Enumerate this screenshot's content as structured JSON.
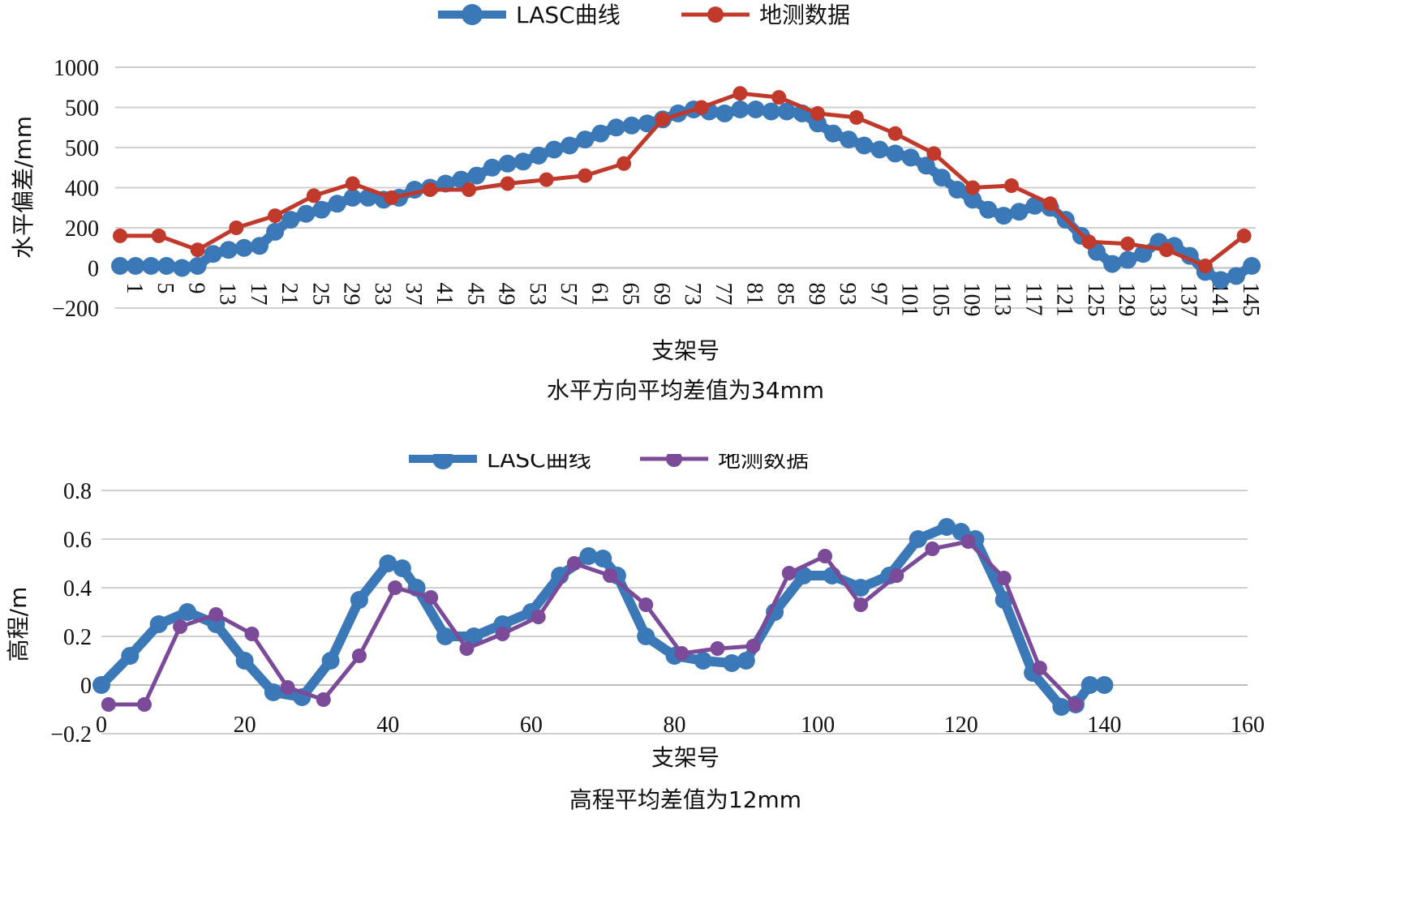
{
  "chart_data": [
    {
      "type": "line",
      "title": "",
      "caption": "水平方向平均差值为34mm",
      "xlabel": "支架号",
      "ylabel": "水平偏差/mm",
      "x_tick_labels": [
        "1",
        "5",
        "9",
        "13",
        "17",
        "21",
        "25",
        "29",
        "33",
        "37",
        "41",
        "45",
        "49",
        "53",
        "57",
        "61",
        "65",
        "69",
        "73",
        "77",
        "81",
        "85",
        "89",
        "93",
        "97",
        "101",
        "105",
        "109",
        "113",
        "117",
        "121",
        "125",
        "129",
        "133",
        "137",
        "141",
        "145"
      ],
      "y_tick_labels": [
        "1000",
        "500",
        "500",
        "400",
        "200",
        "0",
        "−200"
      ],
      "ylim": [
        -200,
        1000
      ],
      "legend": [
        "LASC曲线",
        "地测数据"
      ],
      "legend_position": "top",
      "grid": true,
      "series": [
        {
          "name": "LASC曲线",
          "color": "#3a78b8",
          "x": [
            1,
            3,
            5,
            7,
            9,
            11,
            13,
            15,
            17,
            19,
            21,
            23,
            25,
            27,
            29,
            31,
            33,
            35,
            37,
            39,
            41,
            43,
            45,
            47,
            49,
            51,
            53,
            55,
            57,
            59,
            61,
            63,
            65,
            67,
            69,
            71,
            73,
            75,
            77,
            79,
            81,
            83,
            85,
            87,
            89,
            91,
            93,
            95,
            97,
            99,
            101,
            103,
            105,
            107,
            109,
            111,
            113,
            115,
            117,
            119,
            121,
            123,
            125,
            127,
            129,
            131,
            133,
            135,
            137,
            139,
            141,
            143,
            145,
            147
          ],
          "values": [
            10,
            10,
            10,
            10,
            0,
            10,
            70,
            90,
            100,
            110,
            180,
            240,
            270,
            290,
            320,
            350,
            350,
            340,
            350,
            390,
            400,
            420,
            440,
            460,
            500,
            520,
            530,
            560,
            590,
            610,
            640,
            670,
            700,
            710,
            720,
            740,
            770,
            790,
            780,
            770,
            790,
            790,
            780,
            780,
            770,
            720,
            670,
            640,
            610,
            590,
            570,
            550,
            510,
            450,
            390,
            340,
            290,
            260,
            280,
            310,
            300,
            240,
            160,
            80,
            20,
            40,
            70,
            130,
            110,
            60,
            -20,
            -60,
            -40,
            10
          ]
        },
        {
          "name": "地测数据",
          "color": "#c0392b",
          "x": [
            1,
            6,
            11,
            16,
            21,
            26,
            31,
            36,
            41,
            46,
            51,
            56,
            61,
            66,
            71,
            76,
            81,
            86,
            91,
            96,
            101,
            106,
            111,
            116,
            121,
            126,
            131,
            136,
            141,
            146
          ],
          "values": [
            160,
            160,
            90,
            200,
            260,
            360,
            420,
            350,
            390,
            390,
            420,
            440,
            460,
            520,
            740,
            800,
            870,
            850,
            770,
            750,
            670,
            570,
            400,
            410,
            320,
            130,
            120,
            90,
            10,
            160
          ]
        }
      ]
    },
    {
      "type": "line",
      "title": "",
      "caption": "高程平均差值为12mm",
      "xlabel": "支架号",
      "ylabel": "高程/m",
      "xlim": [
        0,
        160
      ],
      "ylim": [
        -0.2,
        0.8
      ],
      "x_tick_labels": [
        "0",
        "20",
        "40",
        "60",
        "80",
        "100",
        "120",
        "140",
        "160"
      ],
      "y_tick_labels": [
        "0.8",
        "0.6",
        "0.4",
        "0.2",
        "0",
        "−0.2"
      ],
      "legend": [
        "LASC曲线",
        "地测数据"
      ],
      "legend_position": "top",
      "grid": true,
      "series": [
        {
          "name": "LASC曲线",
          "color": "#3a78b8",
          "x": [
            0,
            4,
            8,
            12,
            16,
            20,
            24,
            28,
            32,
            36,
            40,
            42,
            44,
            48,
            52,
            56,
            60,
            64,
            68,
            70,
            72,
            76,
            80,
            84,
            88,
            90,
            94,
            98,
            102,
            106,
            110,
            114,
            118,
            120,
            122,
            126,
            130,
            134,
            136,
            138,
            140
          ],
          "values": [
            0.0,
            0.12,
            0.25,
            0.3,
            0.25,
            0.1,
            -0.03,
            -0.05,
            0.1,
            0.35,
            0.5,
            0.48,
            0.4,
            0.2,
            0.2,
            0.25,
            0.3,
            0.45,
            0.53,
            0.52,
            0.45,
            0.2,
            0.12,
            0.1,
            0.09,
            0.1,
            0.3,
            0.45,
            0.45,
            0.4,
            0.45,
            0.6,
            0.65,
            0.63,
            0.6,
            0.35,
            0.05,
            -0.09,
            -0.08,
            0.0,
            0.0
          ]
        },
        {
          "name": "地测数据",
          "color": "#7b4b9a",
          "x": [
            1,
            6,
            11,
            16,
            21,
            26,
            31,
            36,
            41,
            46,
            51,
            56,
            61,
            66,
            71,
            76,
            81,
            86,
            91,
            96,
            101,
            106,
            111,
            116,
            121,
            126,
            131,
            136
          ],
          "values": [
            -0.08,
            -0.08,
            0.24,
            0.29,
            0.21,
            -0.01,
            -0.06,
            0.12,
            0.4,
            0.36,
            0.15,
            0.21,
            0.28,
            0.5,
            0.45,
            0.33,
            0.13,
            0.15,
            0.16,
            0.46,
            0.53,
            0.33,
            0.45,
            0.56,
            0.59,
            0.44,
            0.07,
            -0.08
          ]
        }
      ]
    }
  ]
}
